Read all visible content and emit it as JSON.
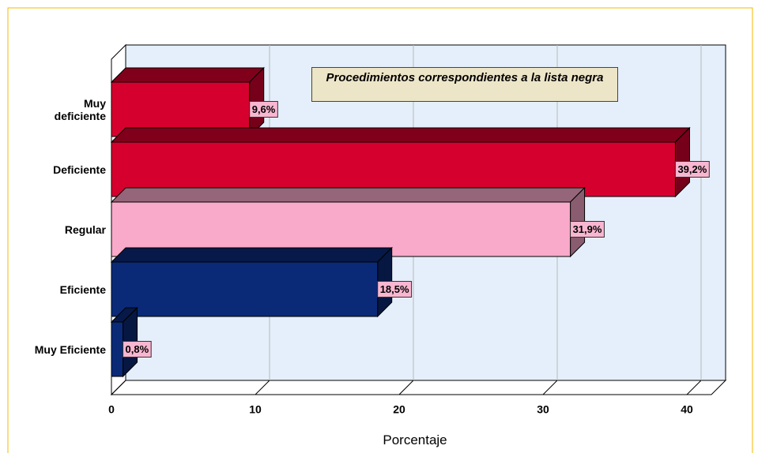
{
  "chart_data": {
    "type": "bar3d_horizontal",
    "title": "Procedimientos correspondientes a la lista negra",
    "x_label": "Porcentaje",
    "categories": [
      "Muy\ndeficiente",
      "Deficiente",
      "Regular",
      "Eficiente",
      "Muy Eficiente"
    ],
    "values": [
      9.6,
      39.2,
      31.9,
      18.5,
      0.8
    ],
    "value_labels": [
      "9,6%",
      "39,2%",
      "31,9%",
      "18,5%",
      "0,8%"
    ],
    "colors": [
      "#d6002f",
      "#d6002f",
      "#f9a9c9",
      "#0a2a78",
      "#0a2a78"
    ],
    "xlim": [
      0,
      40
    ],
    "xticks": [
      0,
      10,
      20,
      30,
      40
    ],
    "grid": true
  }
}
